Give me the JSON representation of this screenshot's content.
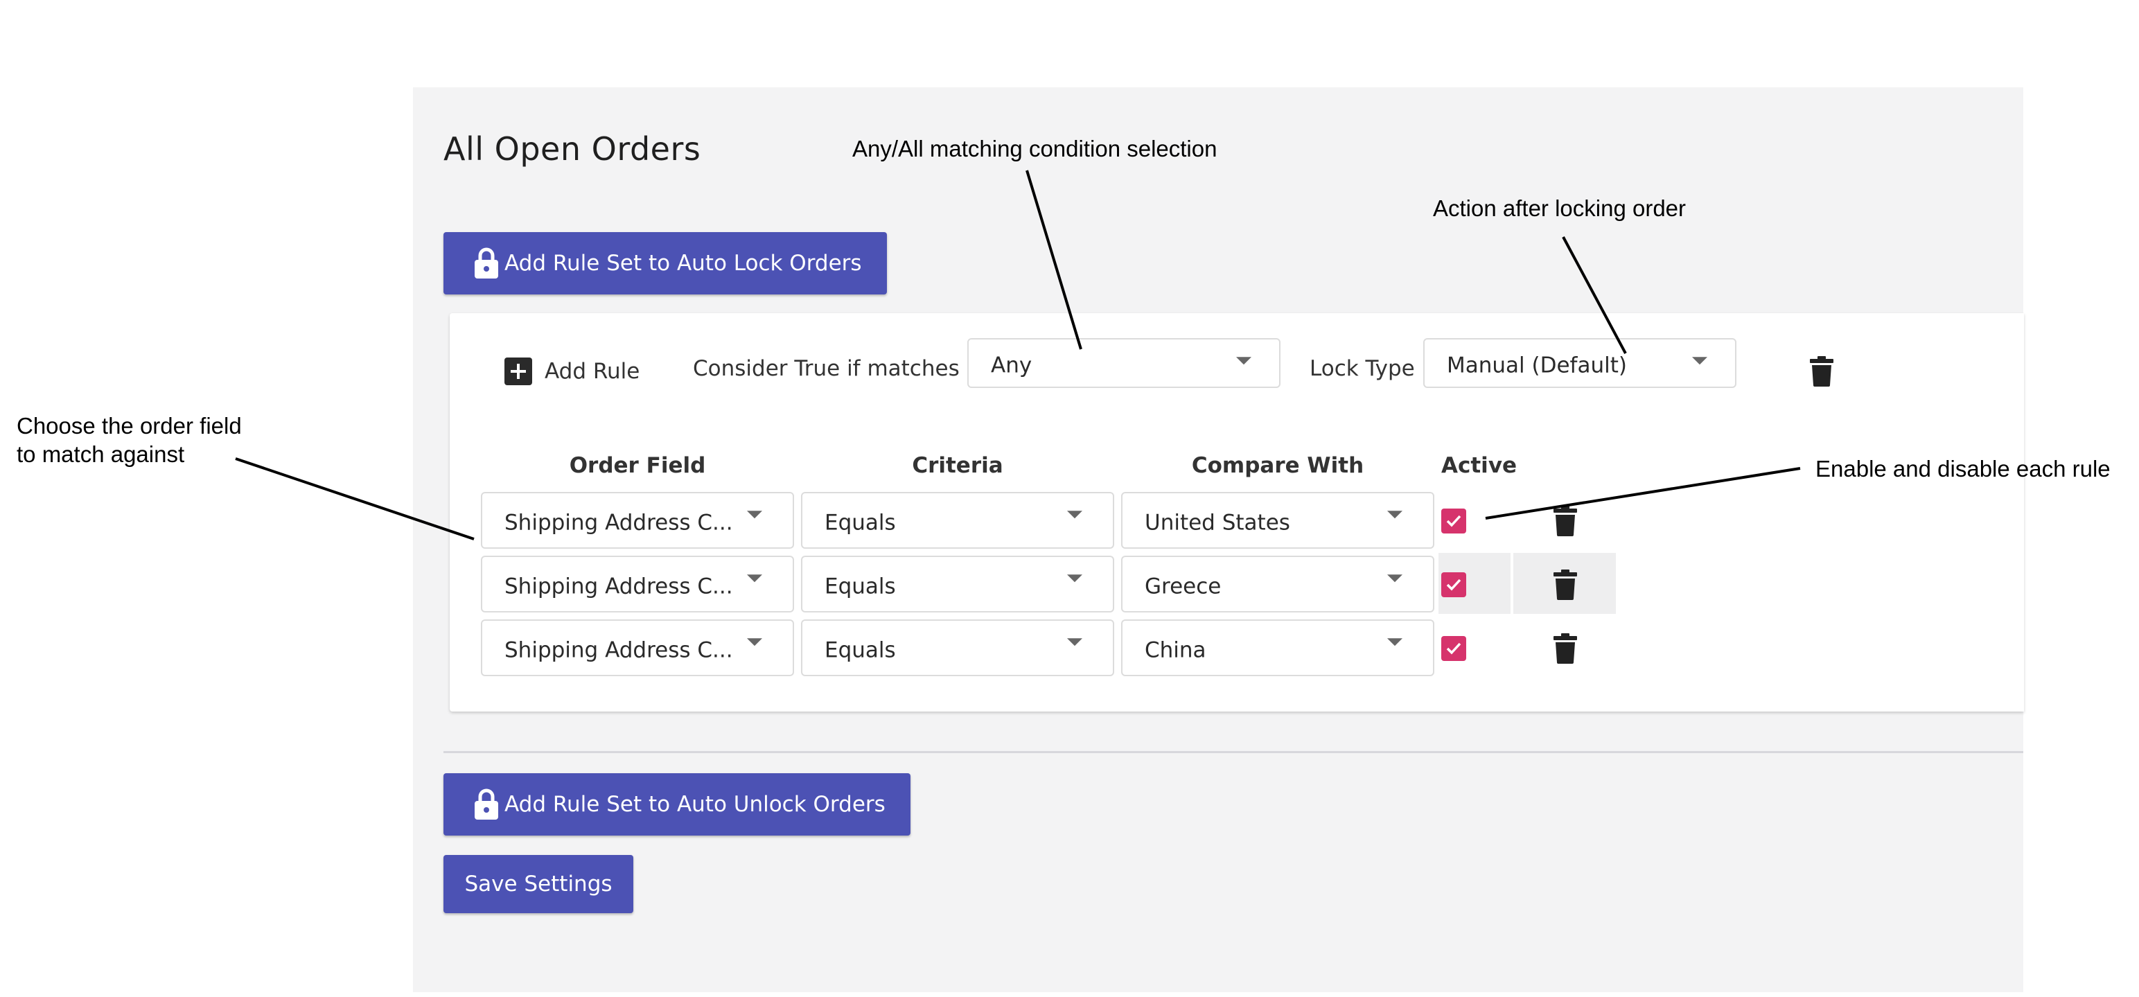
{
  "page": {
    "title": "All Open Orders",
    "add_lock_rule_set_label": "Add Rule Set to Auto Lock Orders",
    "add_unlock_rule_set_label": "Add Rule Set to Auto Unlock Orders",
    "save_settings_label": "Save Settings"
  },
  "rule_set": {
    "add_rule_label": "Add Rule",
    "consider_true_label": "Consider True if matches",
    "match_mode": "Any",
    "lock_type_label": "Lock Type",
    "lock_type": "Manual (Default)"
  },
  "columns": {
    "order_field": "Order Field",
    "criteria": "Criteria",
    "compare_with": "Compare With",
    "active": "Active"
  },
  "rules": [
    {
      "order_field": "Shipping Address C...",
      "criteria": "Equals",
      "compare_with": "United States",
      "active": true
    },
    {
      "order_field": "Shipping Address C...",
      "criteria": "Equals",
      "compare_with": "Greece",
      "active": true
    },
    {
      "order_field": "Shipping Address C...",
      "criteria": "Equals",
      "compare_with": "China",
      "active": true
    }
  ],
  "annotations": {
    "match_condition": "Any/All matching condition selection",
    "lock_action": "Action after locking order",
    "order_field_line1": "Choose the order field",
    "order_field_line2": "to match against",
    "enable_disable": "Enable and disable each rule"
  },
  "colors": {
    "primary_button": "#4c52b4",
    "checkbox": "#d6336c",
    "panel_background": "#f3f3f4"
  },
  "icons": {
    "lock": "lock-icon",
    "add": "plus-square-icon",
    "delete": "trash-icon",
    "dropdown": "caret-down-icon",
    "checked": "checkmark-icon"
  }
}
